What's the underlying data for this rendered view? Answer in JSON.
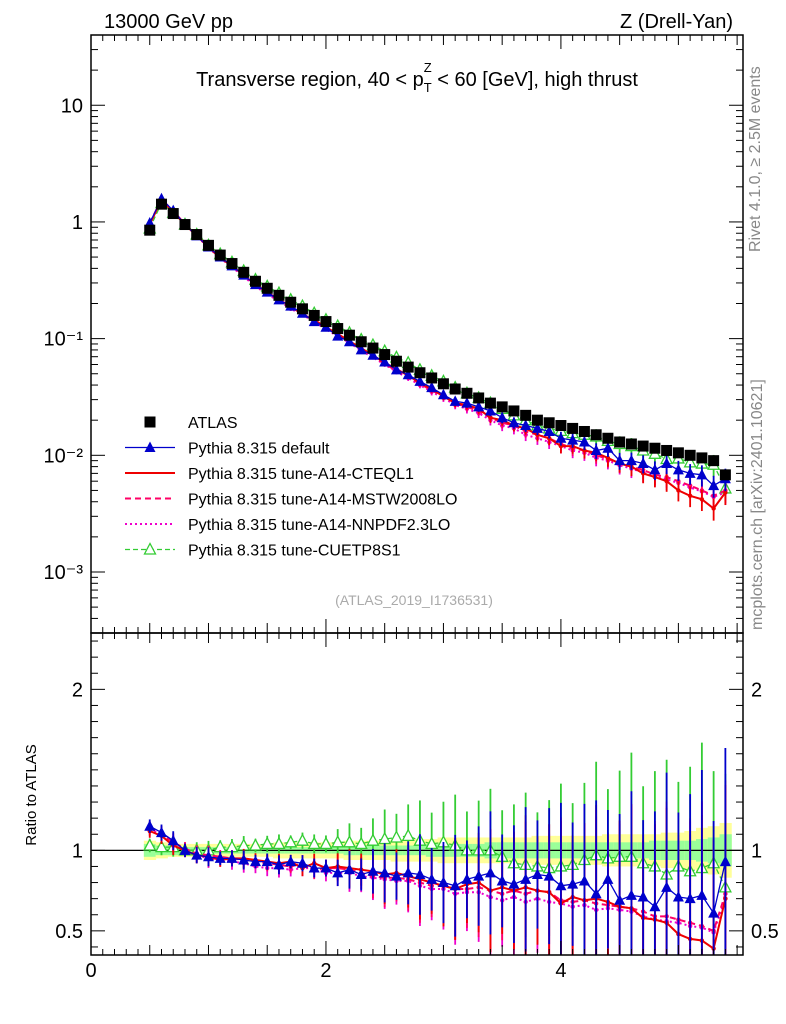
{
  "header": {
    "energy": "13000 GeV pp",
    "process": "Z (Drell-Yan)"
  },
  "side_labels": {
    "rivet": "Rivet 4.1.0, ≥ 2.5M events",
    "mcplots": "mcplots.cern.ch [arXiv:2401.10621]"
  },
  "colors": {
    "atlas": "#000000",
    "default": "#0000cc",
    "cteql1": "#ee0000",
    "mstw": "#ff0066",
    "nnpdf": "#ee00cc",
    "cuetp8s1": "#33cc33",
    "band_yellow": "#ffff99",
    "band_green": "#99ff99"
  },
  "chart_data": [
    {
      "type": "line",
      "panel": "main",
      "title": "Transverse region, 40 < p_T^Z < 60 [GeV], high thrust",
      "title_parts": {
        "pre": "Transverse region, 40 < p",
        "sup": "Z",
        "sub": "T",
        "post": " < 60 [GeV], high thrust"
      },
      "analysis_tag": "(ATLAS_2019_I1736531)",
      "yscale": "log",
      "ylim": [
        0.0003,
        40
      ],
      "xlim": [
        0,
        5.55
      ],
      "yticks": [
        {
          "value": 10,
          "label": "10"
        },
        {
          "value": 1,
          "label": "1"
        },
        {
          "value": 0.1,
          "label": "10⁻¹"
        },
        {
          "value": 0.01,
          "label": "10⁻²"
        },
        {
          "value": 0.001,
          "label": "10⁻³"
        }
      ],
      "legend_position": "lower-left",
      "x": [
        0.5,
        0.6,
        0.7,
        0.8,
        0.9,
        1.0,
        1.1,
        1.2,
        1.3,
        1.4,
        1.5,
        1.6,
        1.7,
        1.8,
        1.9,
        2.0,
        2.1,
        2.2,
        2.3,
        2.4,
        2.5,
        2.6,
        2.7,
        2.8,
        2.9,
        3.0,
        3.1,
        3.2,
        3.3,
        3.4,
        3.5,
        3.6,
        3.7,
        3.8,
        3.9,
        4.0,
        4.1,
        4.2,
        4.3,
        4.4,
        4.5,
        4.6,
        4.7,
        4.8,
        4.9,
        5.0,
        5.1,
        5.2,
        5.3,
        5.4
      ],
      "series": [
        {
          "name": "ATLAS",
          "key": "atlas",
          "style": "square",
          "values": [
            0.85,
            1.42,
            1.18,
            0.95,
            0.78,
            0.63,
            0.52,
            0.44,
            0.37,
            0.31,
            0.27,
            0.235,
            0.205,
            0.18,
            0.158,
            0.14,
            0.122,
            0.107,
            0.094,
            0.083,
            0.073,
            0.064,
            0.057,
            0.051,
            0.046,
            0.041,
            0.037,
            0.034,
            0.031,
            0.028,
            0.026,
            0.024,
            0.022,
            0.02,
            0.019,
            0.018,
            0.017,
            0.016,
            0.015,
            0.014,
            0.013,
            0.0125,
            0.012,
            0.0115,
            0.011,
            0.0105,
            0.01,
            0.0095,
            0.009,
            0.0068
          ]
        },
        {
          "name": "Pythia 8.315 default",
          "key": "default",
          "style": "filled-triangle",
          "values": [
            0.98,
            1.58,
            1.25,
            0.95,
            0.76,
            0.61,
            0.5,
            0.42,
            0.35,
            0.29,
            0.25,
            0.215,
            0.19,
            0.165,
            0.14,
            0.125,
            0.105,
            0.094,
            0.08,
            0.072,
            0.063,
            0.054,
            0.049,
            0.043,
            0.038,
            0.033,
            0.029,
            0.028,
            0.026,
            0.024,
            0.021,
            0.019,
            0.018,
            0.017,
            0.016,
            0.014,
            0.0135,
            0.013,
            0.011,
            0.0115,
            0.009,
            0.009,
            0.0085,
            0.0075,
            0.0085,
            0.0075,
            0.007,
            0.0068,
            0.0055,
            0.0063
          ]
        },
        {
          "name": "Pythia 8.315 tune-A14-CTEQL1",
          "key": "cteql1",
          "style": "solid",
          "values": [
            0.95,
            1.55,
            1.22,
            0.95,
            0.76,
            0.61,
            0.49,
            0.42,
            0.35,
            0.29,
            0.25,
            0.215,
            0.19,
            0.16,
            0.145,
            0.125,
            0.11,
            0.095,
            0.083,
            0.072,
            0.062,
            0.055,
            0.048,
            0.042,
            0.037,
            0.032,
            0.028,
            0.027,
            0.025,
            0.021,
            0.02,
            0.018,
            0.017,
            0.015,
            0.014,
            0.012,
            0.012,
            0.011,
            0.0105,
            0.0095,
            0.0085,
            0.008,
            0.007,
            0.0065,
            0.006,
            0.005,
            0.0045,
            0.0042,
            0.0035,
            0.0048
          ]
        },
        {
          "name": "Pythia 8.315 tune-A14-MSTW2008LO",
          "key": "mstw",
          "style": "dashed",
          "values": [
            0.97,
            1.57,
            1.24,
            0.96,
            0.77,
            0.61,
            0.5,
            0.42,
            0.35,
            0.29,
            0.25,
            0.215,
            0.185,
            0.165,
            0.14,
            0.125,
            0.108,
            0.094,
            0.081,
            0.07,
            0.061,
            0.053,
            0.047,
            0.041,
            0.036,
            0.032,
            0.028,
            0.026,
            0.024,
            0.021,
            0.019,
            0.018,
            0.016,
            0.015,
            0.014,
            0.0125,
            0.0115,
            0.011,
            0.01,
            0.0093,
            0.0085,
            0.008,
            0.0075,
            0.0068,
            0.0065,
            0.006,
            0.0055,
            0.005,
            0.0045,
            0.005
          ]
        },
        {
          "name": "Pythia 8.315 tune-A14-NNPDF2.3LO",
          "key": "nnpdf",
          "style": "dotted",
          "values": [
            0.96,
            1.56,
            1.23,
            0.95,
            0.76,
            0.6,
            0.49,
            0.41,
            0.34,
            0.28,
            0.24,
            0.21,
            0.18,
            0.16,
            0.14,
            0.12,
            0.105,
            0.092,
            0.079,
            0.069,
            0.06,
            0.052,
            0.046,
            0.04,
            0.035,
            0.031,
            0.027,
            0.025,
            0.023,
            0.02,
            0.018,
            0.017,
            0.015,
            0.014,
            0.013,
            0.012,
            0.011,
            0.0105,
            0.0095,
            0.009,
            0.0082,
            0.0077,
            0.0071,
            0.0066,
            0.0062,
            0.0058,
            0.0053,
            0.0049,
            0.0044,
            0.0048
          ]
        },
        {
          "name": "Pythia 8.315 tune-CUETP8S1",
          "key": "cuetp8s1",
          "style": "open-triangle",
          "values": [
            0.88,
            1.45,
            1.2,
            0.95,
            0.78,
            0.63,
            0.53,
            0.45,
            0.38,
            0.32,
            0.28,
            0.245,
            0.215,
            0.19,
            0.165,
            0.145,
            0.128,
            0.112,
            0.098,
            0.088,
            0.078,
            0.069,
            0.062,
            0.054,
            0.048,
            0.043,
            0.038,
            0.034,
            0.031,
            0.028,
            0.025,
            0.022,
            0.02,
            0.018,
            0.017,
            0.0162,
            0.0155,
            0.015,
            0.0145,
            0.0133,
            0.0125,
            0.012,
            0.011,
            0.0103,
            0.0093,
            0.0094,
            0.0087,
            0.0085,
            0.0083,
            0.0052
          ]
        }
      ]
    },
    {
      "type": "line",
      "panel": "ratio",
      "ylabel": "Ratio to ATLAS",
      "ylim": [
        0.35,
        2.35
      ],
      "xlim": [
        0,
        5.55
      ],
      "yticks": [
        {
          "value": 2,
          "label": "2"
        },
        {
          "value": 1,
          "label": "1"
        },
        {
          "value": 0.5,
          "label": "0.5"
        }
      ],
      "xticks": [
        {
          "value": 0,
          "label": "0"
        },
        {
          "value": 2,
          "label": "2"
        },
        {
          "value": 4,
          "label": "4"
        }
      ],
      "band_inner_halfwidth": [
        0.04,
        0.03,
        0.03,
        0.02,
        0.02,
        0.02,
        0.02,
        0.02,
        0.02,
        0.02,
        0.02,
        0.02,
        0.02,
        0.02,
        0.02,
        0.02,
        0.02,
        0.03,
        0.03,
        0.03,
        0.03,
        0.03,
        0.03,
        0.03,
        0.04,
        0.04,
        0.04,
        0.04,
        0.04,
        0.05,
        0.05,
        0.05,
        0.05,
        0.05,
        0.05,
        0.05,
        0.05,
        0.05,
        0.05,
        0.05,
        0.05,
        0.05,
        0.05,
        0.06,
        0.06,
        0.06,
        0.06,
        0.07,
        0.08,
        0.1
      ],
      "band_outer_halfwidth": [
        0.06,
        0.05,
        0.04,
        0.04,
        0.04,
        0.04,
        0.04,
        0.04,
        0.04,
        0.04,
        0.04,
        0.05,
        0.05,
        0.05,
        0.05,
        0.05,
        0.05,
        0.06,
        0.06,
        0.06,
        0.06,
        0.07,
        0.07,
        0.07,
        0.07,
        0.08,
        0.08,
        0.08,
        0.08,
        0.08,
        0.08,
        0.08,
        0.08,
        0.09,
        0.09,
        0.09,
        0.09,
        0.09,
        0.09,
        0.1,
        0.1,
        0.1,
        0.1,
        0.1,
        0.11,
        0.11,
        0.12,
        0.14,
        0.15,
        0.17
      ],
      "series": [
        {
          "name": "Pythia 8.315 default",
          "key": "default",
          "style": "filled-triangle",
          "values": [
            1.15,
            1.11,
            1.06,
            1.0,
            0.97,
            0.96,
            0.95,
            0.95,
            0.94,
            0.93,
            0.93,
            0.91,
            0.93,
            0.92,
            0.89,
            0.89,
            0.86,
            0.88,
            0.85,
            0.87,
            0.86,
            0.84,
            0.86,
            0.85,
            0.82,
            0.8,
            0.78,
            0.82,
            0.84,
            0.86,
            0.81,
            0.79,
            0.82,
            0.85,
            0.84,
            0.78,
            0.79,
            0.81,
            0.73,
            0.82,
            0.69,
            0.72,
            0.71,
            0.65,
            0.77,
            0.71,
            0.7,
            0.72,
            0.61,
            0.93
          ]
        },
        {
          "name": "Pythia 8.315 tune-A14-CTEQL1",
          "key": "cteql1",
          "style": "solid",
          "values": [
            1.12,
            1.09,
            1.03,
            1.0,
            0.97,
            0.96,
            0.94,
            0.95,
            0.95,
            0.94,
            0.93,
            0.92,
            0.93,
            0.89,
            0.92,
            0.89,
            0.9,
            0.89,
            0.88,
            0.87,
            0.85,
            0.86,
            0.84,
            0.82,
            0.8,
            0.78,
            0.76,
            0.79,
            0.8,
            0.75,
            0.77,
            0.75,
            0.77,
            0.75,
            0.74,
            0.67,
            0.71,
            0.69,
            0.7,
            0.68,
            0.65,
            0.64,
            0.58,
            0.57,
            0.55,
            0.48,
            0.45,
            0.44,
            0.39,
            0.7
          ]
        },
        {
          "name": "Pythia 8.315 tune-A14-MSTW2008LO",
          "key": "mstw",
          "style": "dashed",
          "values": [
            1.14,
            1.1,
            1.05,
            1.01,
            0.98,
            0.97,
            0.96,
            0.95,
            0.94,
            0.93,
            0.92,
            0.91,
            0.9,
            0.92,
            0.88,
            0.89,
            0.89,
            0.88,
            0.86,
            0.84,
            0.83,
            0.83,
            0.82,
            0.8,
            0.78,
            0.78,
            0.76,
            0.76,
            0.77,
            0.75,
            0.73,
            0.75,
            0.73,
            0.75,
            0.74,
            0.69,
            0.68,
            0.69,
            0.67,
            0.66,
            0.65,
            0.64,
            0.62,
            0.59,
            0.59,
            0.57,
            0.55,
            0.53,
            0.5,
            0.73
          ]
        },
        {
          "name": "Pythia 8.315 tune-A14-NNPDF2.3LO",
          "key": "nnpdf",
          "style": "dotted",
          "values": [
            1.13,
            1.1,
            1.04,
            1.0,
            0.97,
            0.95,
            0.94,
            0.93,
            0.92,
            0.9,
            0.89,
            0.89,
            0.88,
            0.89,
            0.89,
            0.86,
            0.86,
            0.86,
            0.84,
            0.83,
            0.82,
            0.81,
            0.81,
            0.78,
            0.76,
            0.76,
            0.73,
            0.74,
            0.74,
            0.71,
            0.69,
            0.71,
            0.68,
            0.7,
            0.68,
            0.67,
            0.65,
            0.66,
            0.63,
            0.64,
            0.63,
            0.62,
            0.59,
            0.57,
            0.56,
            0.55,
            0.53,
            0.52,
            0.49,
            0.7
          ]
        },
        {
          "name": "Pythia 8.315 tune-CUETP8S1",
          "key": "cuetp8s1",
          "style": "open-triangle",
          "values": [
            1.03,
            1.02,
            1.02,
            1.0,
            1.0,
            1.0,
            1.02,
            1.02,
            1.03,
            1.03,
            1.04,
            1.04,
            1.05,
            1.06,
            1.04,
            1.04,
            1.05,
            1.05,
            1.04,
            1.06,
            1.07,
            1.08,
            1.09,
            1.06,
            1.04,
            1.05,
            1.03,
            1.0,
            1.0,
            1.0,
            0.96,
            0.92,
            0.91,
            0.9,
            0.89,
            0.9,
            0.91,
            0.94,
            0.97,
            0.95,
            0.96,
            0.96,
            0.92,
            0.9,
            0.85,
            0.9,
            0.87,
            0.89,
            0.92,
            0.77
          ]
        }
      ]
    }
  ]
}
